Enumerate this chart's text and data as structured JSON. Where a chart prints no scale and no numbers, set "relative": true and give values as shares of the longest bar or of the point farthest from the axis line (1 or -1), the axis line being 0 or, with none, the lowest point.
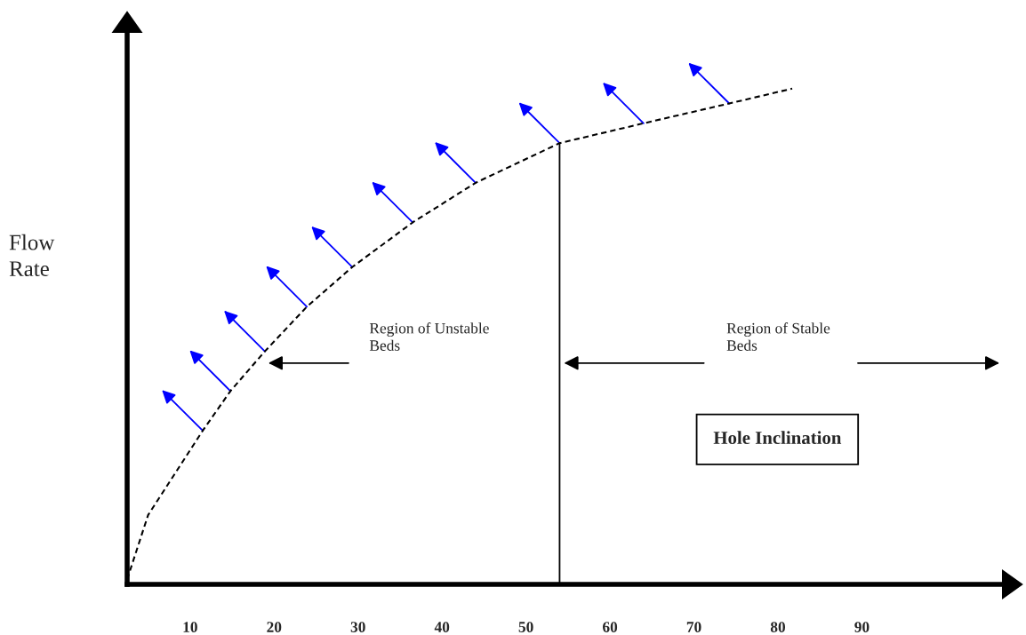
{
  "chart_data": {
    "type": "line",
    "relative": true,
    "xlabel": "Hole Inclination",
    "ylabel": "Flow\nRate",
    "x": [
      2.5,
      5,
      11.5,
      14.8,
      18.9,
      23.9,
      29.3,
      36.5,
      44,
      54,
      64,
      74.2,
      81.7
    ],
    "series": [
      {
        "color": "#000000",
        "values": [
          0.01,
          0.14,
          0.31,
          0.39,
          0.47,
          0.56,
          0.64,
          0.73,
          0.81,
          0.89,
          0.93,
          0.97,
          1.0
        ]
      }
    ],
    "line_style": "dashed",
    "marker": "none",
    "xlim": [
      2.5,
      107
    ],
    "xticks": [
      10,
      20,
      30,
      40,
      50,
      60,
      70,
      80,
      90
    ],
    "tick_labels": "x",
    "ref_lines": [
      {
        "axis": "x",
        "value": 54,
        "color": "#000000"
      }
    ],
    "annotations": [
      "Region of Unstable\nBeds",
      "Region of Stable\nBeds"
    ],
    "grid": false,
    "legend": false
  }
}
